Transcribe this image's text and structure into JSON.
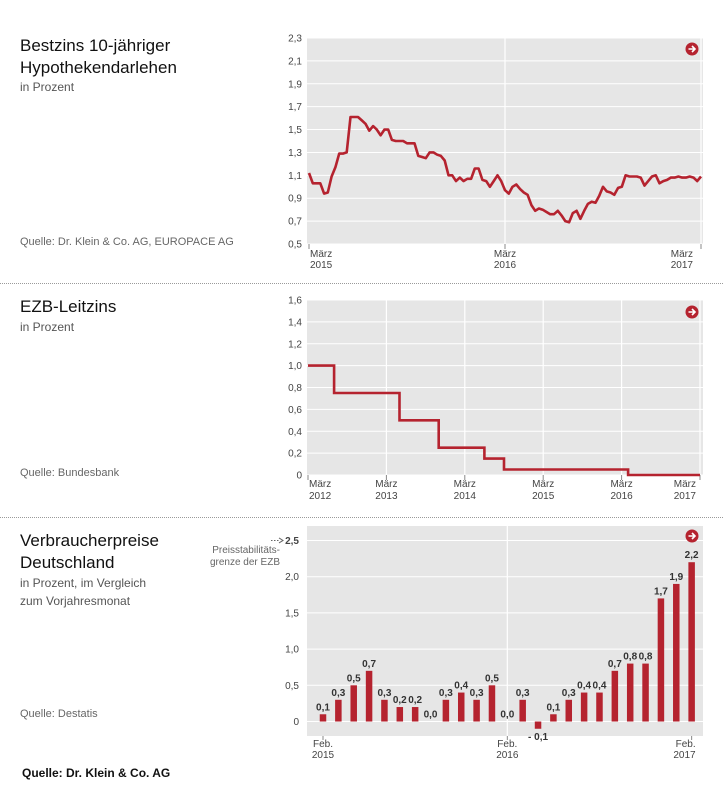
{
  "panels": [
    {
      "title": "Bestzins 10-jähriger Hypothekendarlehen",
      "title_lines": [
        "Bestzins 10-jähriger",
        "Hypothekendarlehen"
      ],
      "subtitle_lines": [
        "in Prozent"
      ],
      "source": "Quelle: Dr. Klein & Co. AG, EUROPACE AG"
    },
    {
      "title": "EZB-Leitzins",
      "title_lines": [
        "EZB-Leitzins"
      ],
      "subtitle_lines": [
        "in Prozent"
      ],
      "source": "Quelle: Bundesbank"
    },
    {
      "title": "Verbraucherpreise Deutschland",
      "title_lines": [
        "Verbraucherpreise",
        "Deutschland"
      ],
      "subtitle_lines": [
        "in Prozent, im Vergleich",
        "zum Vorjahresmonat"
      ],
      "source": "Quelle: Destatis",
      "annotation_lines": [
        "Preisstabilitäts-",
        "grenze der EZB"
      ]
    }
  ],
  "footer": "Quelle: Dr. Klein & Co. AG",
  "colors": {
    "series": "#b5232f",
    "plot_bg": "#e6e6e6",
    "grid": "#ffffff",
    "arrow": "#b5232f"
  },
  "icons": {
    "panel_arrow": "arrow-right-circle-icon"
  },
  "chart_data": [
    {
      "type": "line",
      "title": "Bestzins 10-jähriger Hypothekendarlehen",
      "ylabel": "in Prozent",
      "ylim": [
        0.5,
        2.3
      ],
      "yticks": [
        "0,5",
        "0,7",
        "0,9",
        "1,1",
        "1,3",
        "1,5",
        "1,7",
        "1,9",
        "2,1",
        "2,3"
      ],
      "xticks": [
        {
          "label": [
            "März",
            "2015"
          ],
          "idx": 0
        },
        {
          "label": [
            "März",
            "2016"
          ],
          "idx": 52
        },
        {
          "label": [
            "März",
            "2017"
          ],
          "idx": 104
        }
      ],
      "grid": true,
      "series": [
        {
          "values": [
            1.12,
            1.03,
            1.03,
            1.03,
            0.94,
            0.95,
            1.09,
            1.17,
            1.29,
            1.29,
            1.3,
            1.61,
            1.61,
            1.61,
            1.58,
            1.55,
            1.49,
            1.53,
            1.5,
            1.45,
            1.5,
            1.5,
            1.41,
            1.4,
            1.4,
            1.4,
            1.38,
            1.38,
            1.38,
            1.27,
            1.26,
            1.25,
            1.3,
            1.3,
            1.28,
            1.27,
            1.23,
            1.1,
            1.1,
            1.05,
            1.08,
            1.05,
            1.07,
            1.07,
            1.16,
            1.16,
            1.06,
            1.05,
            1.0,
            1.05,
            1.1,
            1.05,
            0.97,
            0.94,
            1.0,
            1.02,
            0.98,
            0.95,
            0.93,
            0.84,
            0.79,
            0.81,
            0.8,
            0.78,
            0.76,
            0.76,
            0.79,
            0.75,
            0.7,
            0.69,
            0.77,
            0.79,
            0.72,
            0.79,
            0.85,
            0.87,
            0.86,
            0.92,
            1.0,
            0.96,
            0.95,
            0.93,
            0.99,
            1.0,
            1.1,
            1.09,
            1.09,
            1.09,
            1.08,
            1.01,
            1.05,
            1.09,
            1.1,
            1.03,
            1.05,
            1.06,
            1.08,
            1.08,
            1.09,
            1.08,
            1.08,
            1.09,
            1.08,
            1.05,
            1.09
          ]
        }
      ]
    },
    {
      "type": "line",
      "title": "EZB-Leitzins",
      "ylabel": "in Prozent",
      "ylim": [
        0,
        1.6
      ],
      "yticks": [
        "0",
        "0,2",
        "0,4",
        "0,6",
        "0,8",
        "1,0",
        "1,2",
        "1,4",
        "1,6"
      ],
      "xticks": [
        {
          "label": [
            "März",
            "2012"
          ],
          "idx": 0
        },
        {
          "label": [
            "März",
            "2013"
          ],
          "idx": 12
        },
        {
          "label": [
            "März",
            "2014"
          ],
          "idx": 24
        },
        {
          "label": [
            "März",
            "2015"
          ],
          "idx": 36
        },
        {
          "label": [
            "März",
            "2016"
          ],
          "idx": 48
        },
        {
          "label": [
            "März",
            "2017"
          ],
          "idx": 60
        }
      ],
      "grid": true,
      "series": [
        {
          "values": [
            1.0,
            1.0,
            1.0,
            1.0,
            0.75,
            0.75,
            0.75,
            0.75,
            0.75,
            0.75,
            0.75,
            0.75,
            0.75,
            0.75,
            0.5,
            0.5,
            0.5,
            0.5,
            0.5,
            0.5,
            0.25,
            0.25,
            0.25,
            0.25,
            0.25,
            0.25,
            0.25,
            0.15,
            0.15,
            0.15,
            0.05,
            0.05,
            0.05,
            0.05,
            0.05,
            0.05,
            0.05,
            0.05,
            0.05,
            0.05,
            0.05,
            0.05,
            0.05,
            0.05,
            0.05,
            0.05,
            0.05,
            0.05,
            0.05,
            0.0,
            0.0,
            0.0,
            0.0,
            0.0,
            0.0,
            0.0,
            0.0,
            0.0,
            0.0,
            0.0,
            0.0
          ]
        }
      ]
    },
    {
      "type": "bar",
      "title": "Verbraucherpreise Deutschland",
      "ylabel": "in Prozent, im Vergleich zum Vorjahresmonat",
      "ylim": [
        -0.2,
        2.7
      ],
      "yticks": [
        "0",
        "0,5",
        "1,0",
        "1,5",
        "2,0",
        "2,5"
      ],
      "xticks": [
        {
          "label": [
            "Feb.",
            "2015"
          ],
          "idx": 0
        },
        {
          "label": [
            "Feb.",
            "2016"
          ],
          "idx": 12
        },
        {
          "label": [
            "Feb.",
            "2017"
          ],
          "idx": 24
        }
      ],
      "grid": true,
      "threshold": 2.5,
      "values": [
        0.1,
        0.3,
        0.5,
        0.7,
        0.3,
        0.2,
        0.2,
        0.0,
        0.3,
        0.4,
        0.3,
        0.5,
        0.0,
        0.3,
        -0.1,
        0.1,
        0.3,
        0.4,
        0.4,
        0.7,
        0.8,
        0.8,
        1.7,
        1.9,
        2.2
      ],
      "value_labels": [
        "0,1",
        "0,3",
        "0,5",
        "0,7",
        "0,3",
        "0,2",
        "0,2",
        "0,0",
        "0,3",
        "0,4",
        "0,3",
        "0,5",
        "0,0",
        "0,3",
        "- 0,1",
        "0,1",
        "0,3",
        "0,4",
        "0,4",
        "0,7",
        "0,8",
        "0,8",
        "1,7",
        "1,9",
        "2,2"
      ]
    }
  ]
}
